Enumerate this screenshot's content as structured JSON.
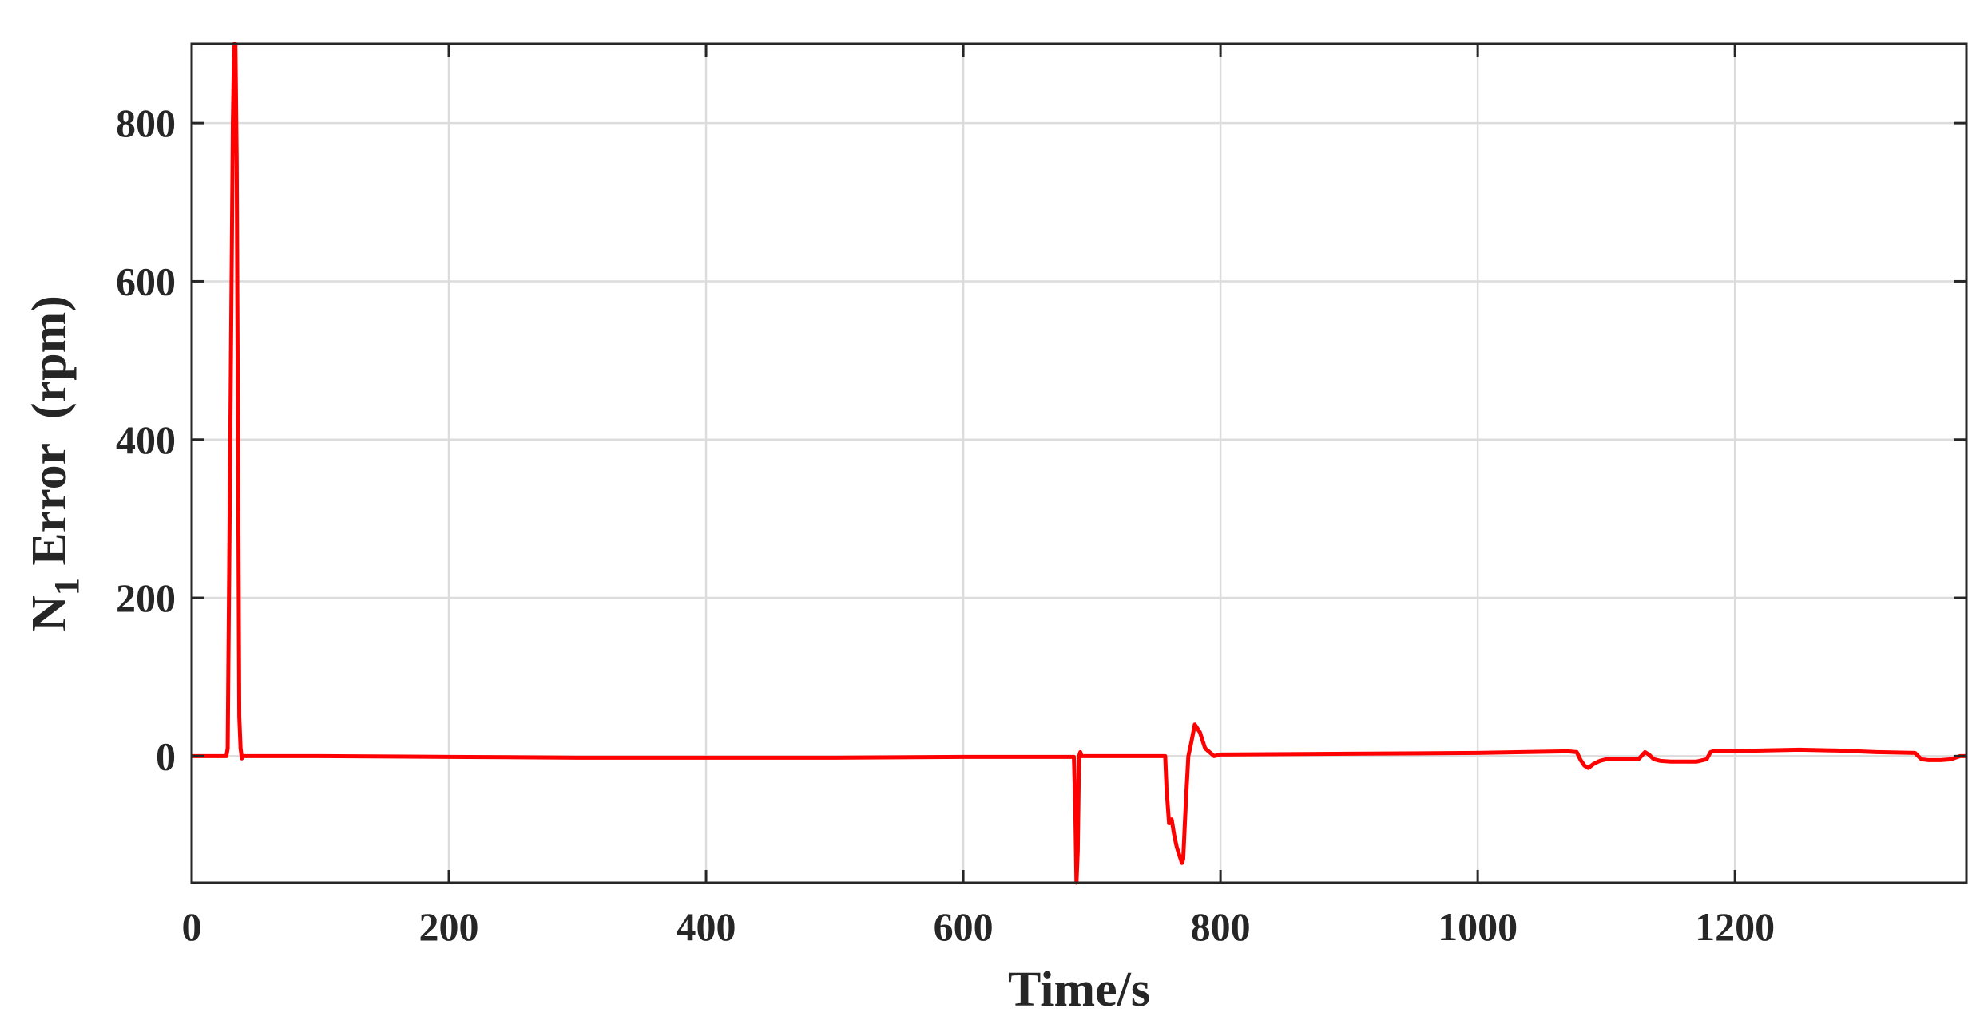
{
  "chart_data": {
    "type": "line",
    "title": "",
    "xlabel": "Time/s",
    "ylabel": {
      "base": "N",
      "subscript": "1",
      "rest": " Error  (rpm)"
    },
    "xlim": [
      0,
      1380
    ],
    "ylim": [
      -160,
      900
    ],
    "xticks": [
      0,
      200,
      400,
      600,
      800,
      1000,
      1200
    ],
    "yticks": [
      0,
      200,
      400,
      600,
      800
    ],
    "grid": true,
    "legend": "none",
    "series": [
      {
        "color": "#ff0000",
        "x": [
          0,
          27,
          28,
          30,
          32,
          33,
          34,
          35,
          36,
          37,
          38,
          39,
          40,
          100,
          200,
          300,
          400,
          500,
          600,
          686,
          687,
          688,
          689,
          690,
          691,
          692,
          757,
          758,
          760,
          762,
          764,
          766,
          768,
          770,
          771,
          773,
          775,
          777,
          780,
          784,
          788,
          795,
          800,
          900,
          1000,
          1070,
          1077,
          1080,
          1083,
          1086,
          1090,
          1095,
          1100,
          1110,
          1125,
          1130,
          1133,
          1137,
          1142,
          1150,
          1160,
          1170,
          1178,
          1181,
          1183,
          1190,
          1220,
          1250,
          1280,
          1310,
          1340,
          1345,
          1350,
          1360,
          1368,
          1375,
          1380
        ],
        "y": [
          0,
          0,
          10,
          400,
          800,
          900,
          900,
          750,
          400,
          50,
          10,
          -3,
          0,
          0,
          -1,
          -2,
          -2,
          -2,
          -1,
          -1,
          -60,
          -160,
          -120,
          0,
          5,
          0,
          0,
          -40,
          -85,
          -80,
          -100,
          -115,
          -125,
          -135,
          -130,
          -60,
          0,
          15,
          40,
          30,
          10,
          0,
          2,
          3,
          4,
          6,
          5,
          -5,
          -12,
          -15,
          -10,
          -6,
          -4,
          -4,
          -4,
          5,
          2,
          -4,
          -6,
          -7,
          -7,
          -7,
          -4,
          5,
          6,
          6,
          7,
          8,
          7,
          5,
          4,
          -4,
          -5,
          -5,
          -4,
          0,
          0
        ]
      }
    ]
  }
}
